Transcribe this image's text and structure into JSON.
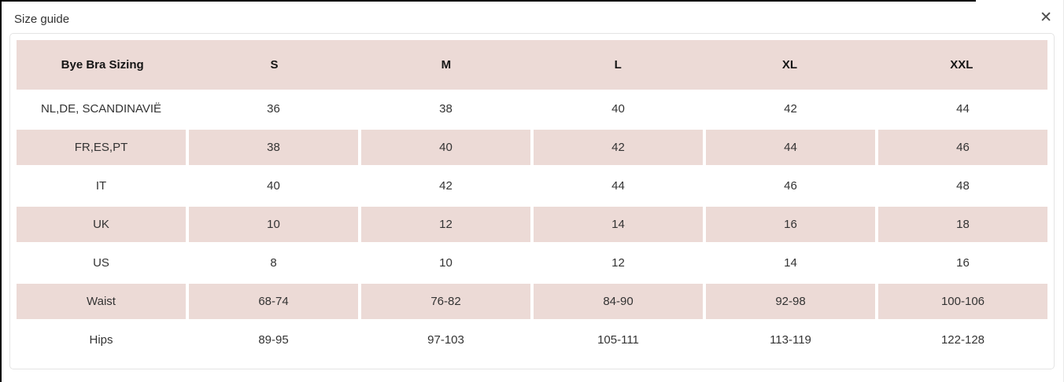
{
  "modal": {
    "title": "Size guide",
    "close_icon": "✕"
  },
  "colors": {
    "pink": "#ecdad6",
    "text": "#333333",
    "panel-border": "#e4e4e4"
  },
  "table": {
    "header": [
      "Bye Bra Sizing",
      "S",
      "M",
      "L",
      "XL",
      "XXL"
    ],
    "rows": [
      {
        "label": "NL,DE, SCANDINAVIË",
        "values": [
          "36",
          "38",
          "40",
          "42",
          "44"
        ],
        "shaded": false
      },
      {
        "label": "FR,ES,PT",
        "values": [
          "38",
          "40",
          "42",
          "44",
          "46"
        ],
        "shaded": true
      },
      {
        "label": "IT",
        "values": [
          "40",
          "42",
          "44",
          "46",
          "48"
        ],
        "shaded": false
      },
      {
        "label": "UK",
        "values": [
          "10",
          "12",
          "14",
          "16",
          "18"
        ],
        "shaded": true
      },
      {
        "label": "US",
        "values": [
          "8",
          "10",
          "12",
          "14",
          "16"
        ],
        "shaded": false
      },
      {
        "label": "Waist",
        "values": [
          "68-74",
          "76-82",
          "84-90",
          "92-98",
          "100-106"
        ],
        "shaded": true
      },
      {
        "label": "Hips",
        "values": [
          "89-95",
          "97-103",
          "105-111",
          "113-119",
          "122-128"
        ],
        "shaded": false
      }
    ]
  }
}
